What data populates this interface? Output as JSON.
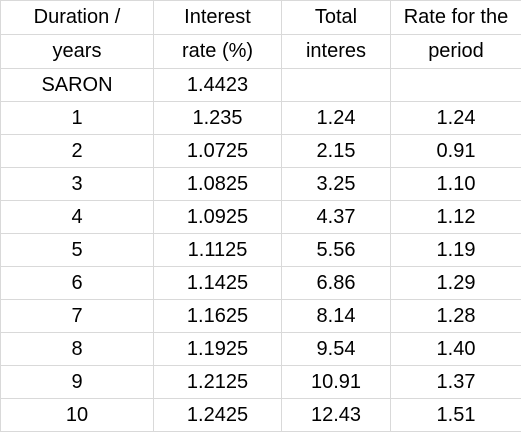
{
  "headers": [
    [
      "Duration /",
      "years"
    ],
    [
      "Interest",
      "rate (%)"
    ],
    [
      "Total",
      "interes"
    ],
    [
      "Rate for the",
      "period"
    ]
  ],
  "rows": [
    [
      "SARON",
      "1.4423",
      "",
      ""
    ],
    [
      "1",
      "1.235",
      "1.24",
      "1.24"
    ],
    [
      "2",
      "1.0725",
      "2.15",
      "0.91"
    ],
    [
      "3",
      "1.0825",
      "3.25",
      "1.10"
    ],
    [
      "4",
      "1.0925",
      "4.37",
      "1.12"
    ],
    [
      "5",
      "1.1125",
      "5.56",
      "1.19"
    ],
    [
      "6",
      "1.1425",
      "6.86",
      "1.29"
    ],
    [
      "7",
      "1.1625",
      "8.14",
      "1.28"
    ],
    [
      "8",
      "1.1925",
      "9.54",
      "1.40"
    ],
    [
      "9",
      "1.2125",
      "10.91",
      "1.37"
    ],
    [
      "10",
      "1.2425",
      "12.43",
      "1.51"
    ]
  ],
  "colors": {
    "gridline": "#d9d9d9",
    "text": "#000000",
    "background": "#ffffff"
  }
}
